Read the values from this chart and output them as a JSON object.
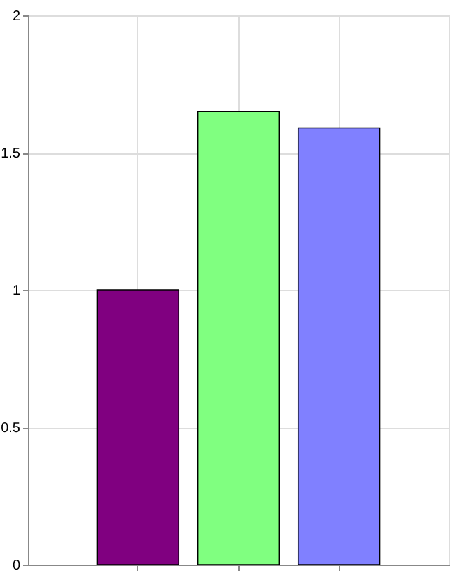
{
  "chart_data": {
    "type": "bar",
    "categories": [
      null,
      null,
      null
    ],
    "values": [
      1.0,
      1.65,
      1.59
    ],
    "colors": [
      "#800080",
      "#80ff80",
      "#8080ff"
    ],
    "ylim": [
      0,
      2
    ],
    "yticks": [
      0,
      0.5,
      1,
      1.5,
      2
    ],
    "grid": true,
    "tick_labels": "y"
  }
}
